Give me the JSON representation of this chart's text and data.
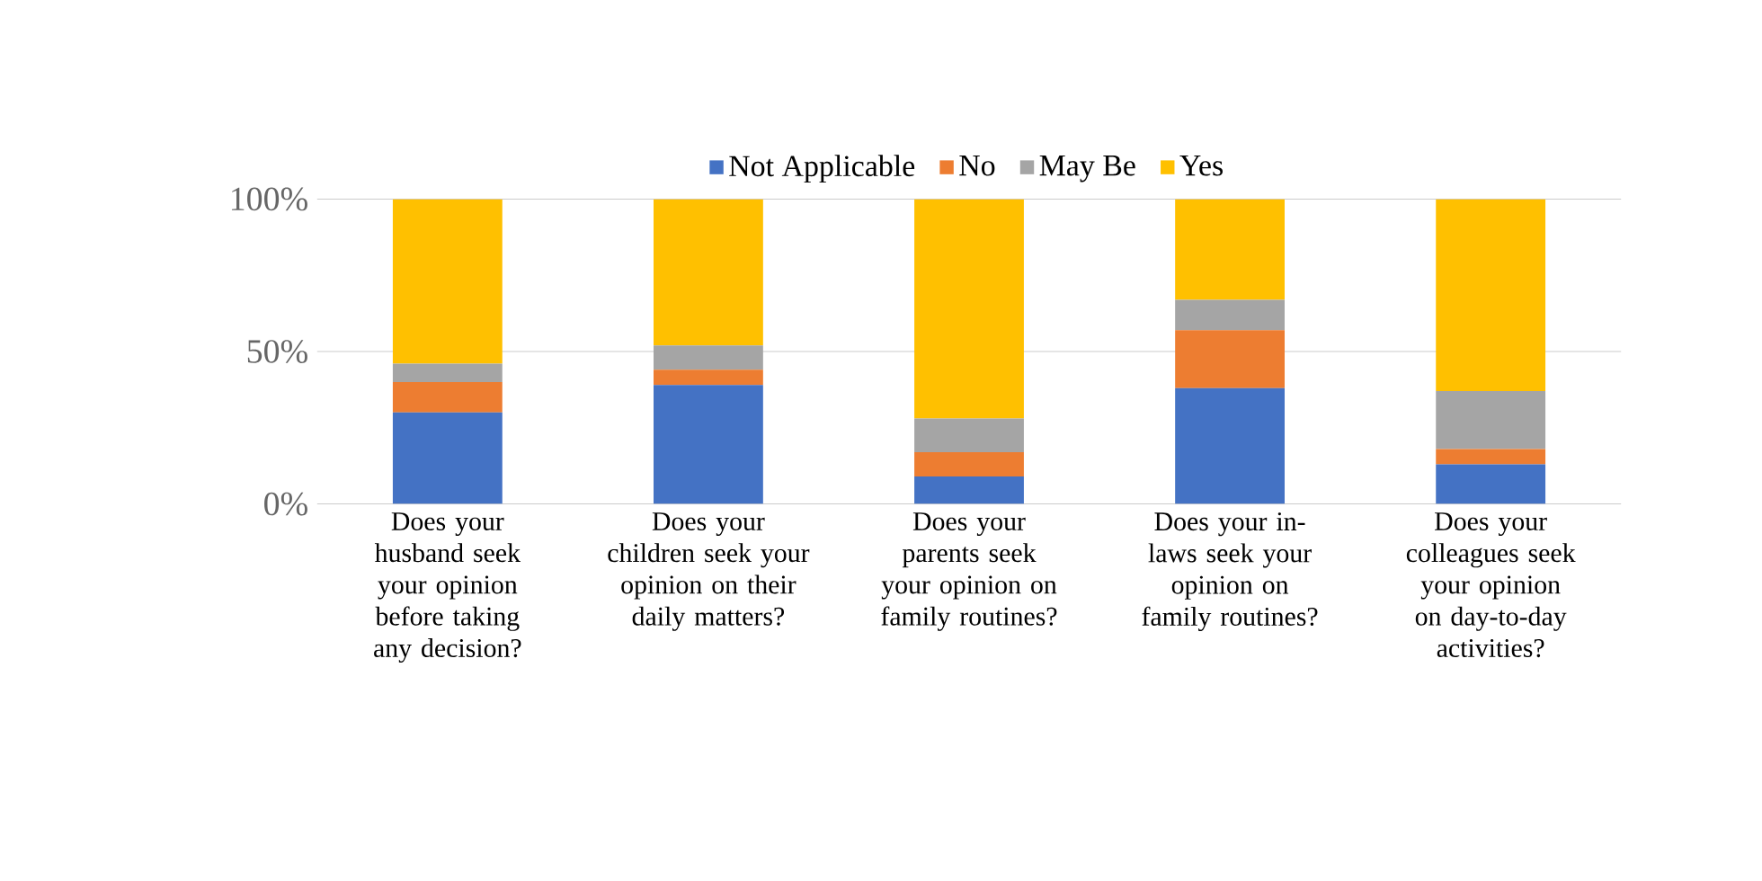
{
  "chart_data": {
    "type": "bar",
    "stacked": true,
    "categories": [
      "Does your husband seek your opinion before taking any decision?",
      "Does your children seek your opinion on their daily matters?",
      "Does your parents seek your opinion on family routines?",
      "Does your in-laws seek your opinion on family routines?",
      "Does your colleagues seek your opinion on day-to-day activities?"
    ],
    "series": [
      {
        "name": "Not Applicable",
        "color": "#4472c4",
        "values": [
          30,
          39,
          9,
          38,
          13
        ]
      },
      {
        "name": "No",
        "color": "#ed7d31",
        "values": [
          10,
          5,
          8,
          19,
          5
        ]
      },
      {
        "name": "May Be",
        "color": "#a5a5a5",
        "values": [
          6,
          8,
          11,
          10,
          19
        ]
      },
      {
        "name": "Yes",
        "color": "#ffc000",
        "values": [
          54,
          48,
          72,
          33,
          63
        ]
      }
    ],
    "ylim": [
      0,
      100
    ],
    "yticks": [
      {
        "value": 0,
        "label": "0%"
      },
      {
        "value": 50,
        "label": "50%"
      },
      {
        "value": 100,
        "label": "100%"
      }
    ],
    "grid": "y",
    "legend": "top"
  }
}
